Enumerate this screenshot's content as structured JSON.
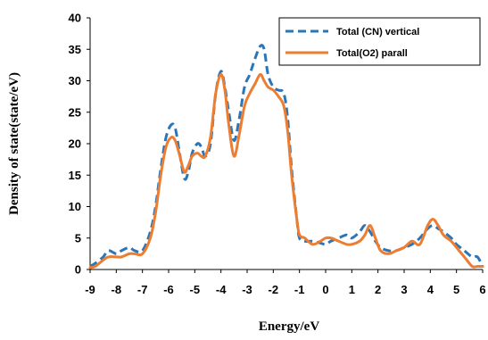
{
  "chart_data": {
    "type": "line",
    "title": "",
    "xlabel": "Energy/eV",
    "ylabel": "Density of state(state/eV)",
    "xlim": [
      -9,
      6
    ],
    "ylim": [
      0,
      40
    ],
    "x_ticks": [
      -9,
      -8,
      -7,
      -6,
      -5,
      -4,
      -3,
      -2,
      -1,
      0,
      1,
      2,
      3,
      4,
      5,
      6
    ],
    "y_ticks": [
      0,
      5,
      10,
      15,
      20,
      25,
      30,
      35,
      40
    ],
    "grid": false,
    "legend_position": "top-right",
    "series": [
      {
        "name": "Total (CN) vertical",
        "color": "#2E75B6",
        "style": "dashed",
        "x": [
          -9,
          -8.8,
          -8.5,
          -8.3,
          -8,
          -7.8,
          -7.5,
          -7.3,
          -7,
          -6.7,
          -6.5,
          -6.3,
          -6.1,
          -5.9,
          -5.75,
          -5.6,
          -5.4,
          -5.25,
          -5.1,
          -4.9,
          -4.75,
          -4.6,
          -4.4,
          -4.2,
          -4.0,
          -3.85,
          -3.7,
          -3.5,
          -3.3,
          -3.1,
          -2.9,
          -2.7,
          -2.5,
          -2.35,
          -2.2,
          -2.0,
          -1.8,
          -1.6,
          -1.45,
          -1.3,
          -1.1,
          -1.0,
          -0.8,
          -0.5,
          -0.2,
          0.0,
          0.2,
          0.5,
          0.8,
          1.0,
          1.3,
          1.5,
          1.7,
          1.9,
          2.1,
          2.4,
          2.7,
          3.0,
          3.3,
          3.6,
          3.9,
          4.1,
          4.3,
          4.5,
          4.8,
          5.0,
          5.3,
          5.6,
          5.8,
          6.0
        ],
        "y": [
          0.5,
          1,
          2,
          3,
          2.5,
          3,
          3.5,
          3,
          3,
          6,
          10,
          16,
          21,
          23,
          22.5,
          19,
          14.5,
          15.5,
          18.5,
          20,
          19.5,
          18,
          20,
          28,
          31.5,
          29,
          25,
          20.5,
          24,
          29,
          31,
          33.5,
          35.5,
          35,
          31,
          29,
          28.5,
          28,
          24,
          16,
          8,
          5,
          4.5,
          4.5,
          4.2,
          4,
          4.5,
          5,
          5.5,
          5,
          6,
          7,
          6,
          4.5,
          3.5,
          3,
          3,
          3.5,
          4,
          5,
          6.5,
          7,
          6.5,
          6,
          5,
          4,
          3,
          2,
          2,
          0.5
        ]
      },
      {
        "name": "Total(O2) parall",
        "color": "#ED7D31",
        "style": "solid",
        "x": [
          -9,
          -8.8,
          -8.5,
          -8.3,
          -8,
          -7.8,
          -7.5,
          -7.3,
          -7,
          -6.7,
          -6.5,
          -6.3,
          -6.1,
          -5.9,
          -5.75,
          -5.6,
          -5.4,
          -5.25,
          -5.1,
          -4.9,
          -4.75,
          -4.6,
          -4.4,
          -4.2,
          -4.0,
          -3.85,
          -3.7,
          -3.5,
          -3.3,
          -3.1,
          -2.9,
          -2.7,
          -2.5,
          -2.35,
          -2.2,
          -2.0,
          -1.8,
          -1.6,
          -1.45,
          -1.3,
          -1.1,
          -1.0,
          -0.8,
          -0.5,
          -0.2,
          0.0,
          0.2,
          0.5,
          0.8,
          1.0,
          1.3,
          1.5,
          1.7,
          1.9,
          2.1,
          2.4,
          2.7,
          3.0,
          3.3,
          3.6,
          3.9,
          4.1,
          4.3,
          4.5,
          4.8,
          5.0,
          5.3,
          5.6,
          5.8,
          6.0
        ],
        "y": [
          0.3,
          0.5,
          1.5,
          2,
          2,
          2,
          2.5,
          2.5,
          2.5,
          5,
          9,
          15,
          19.5,
          21,
          20.5,
          18.5,
          15.5,
          16.5,
          18,
          18.5,
          18,
          18,
          21,
          28,
          31,
          28.5,
          23,
          18,
          21.5,
          26,
          28,
          29.5,
          31,
          30,
          29,
          28.5,
          27.5,
          26,
          22,
          15,
          8,
          5.5,
          5,
          4,
          4.5,
          5,
          5,
          4.5,
          4,
          4,
          4.5,
          5.5,
          7,
          5,
          3,
          2.5,
          3,
          3.5,
          4.5,
          4,
          7,
          8,
          7,
          5.5,
          4.5,
          3.5,
          2,
          0.5,
          0.5,
          0.5
        ]
      }
    ]
  }
}
